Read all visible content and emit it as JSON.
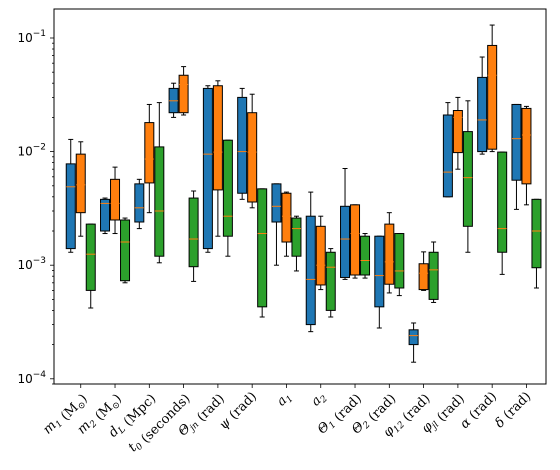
{
  "chart_data": {
    "type": "box",
    "yscale": "log",
    "ylim": [
      9e-05,
      0.18
    ],
    "y_ticks": [
      {
        "value": 0.0001,
        "base": "10",
        "exp": "−4"
      },
      {
        "value": 0.001,
        "base": "10",
        "exp": "−3"
      },
      {
        "value": 0.01,
        "base": "10",
        "exp": "−2"
      },
      {
        "value": 0.1,
        "base": "10",
        "exp": "−1"
      }
    ],
    "colors": [
      "#1f77b4",
      "#ff7f0e",
      "#2ca02c"
    ],
    "median_color": "#ff7f0e",
    "categories": [
      {
        "text": "m",
        "sub": "1",
        "tail": " (M",
        "sun_sub": "⊙",
        "close": ")"
      },
      {
        "text": "m",
        "sub": "2",
        "tail": " (M",
        "sun_sub": "⊙",
        "close": ")"
      },
      {
        "text": "d",
        "sub": "L",
        "tail": " (Mpc)"
      },
      {
        "text": "t",
        "sub": "0",
        "tail": " (seconds)"
      },
      {
        "text": "Θ",
        "sub": "jn",
        "tail": " (rad)"
      },
      {
        "text": "ψ",
        "tail": " (rad)"
      },
      {
        "text": "a",
        "sub": "1"
      },
      {
        "text": "a",
        "sub": "2"
      },
      {
        "text": "Θ",
        "sub": "1",
        "tail": " (rad)"
      },
      {
        "text": "Θ",
        "sub": "2",
        "tail": " (rad)"
      },
      {
        "text": "φ",
        "sub": "12",
        "tail": " (rad)"
      },
      {
        "text": "φ",
        "sub": "jl",
        "tail": " (rad)"
      },
      {
        "text": "α",
        "tail": " (rad)"
      },
      {
        "text": "δ",
        "tail": " (rad)"
      }
    ],
    "series": [
      {
        "color": "#1f77b4",
        "boxes": [
          [
            0.0013,
            0.0014,
            0.0049,
            0.0078,
            0.0128
          ],
          [
            0.0019,
            0.002,
            0.0035,
            0.0038,
            0.0039
          ],
          [
            0.0021,
            0.0024,
            0.0032,
            0.0052,
            0.0057
          ],
          [
            0.02,
            0.022,
            0.028,
            0.036,
            0.04
          ],
          [
            0.0013,
            0.0014,
            0.0095,
            0.036,
            0.038
          ],
          [
            0.0038,
            0.0043,
            0.01,
            0.03,
            0.036
          ],
          [
            0.001,
            0.0024,
            0.0033,
            0.0052,
            0.0052
          ],
          [
            0.00026,
            0.0003,
            0.00075,
            0.0027,
            0.0044
          ],
          [
            0.00075,
            0.00078,
            0.0017,
            0.0033,
            0.0071
          ],
          [
            0.00028,
            0.00043,
            0.00081,
            0.0018,
            0.0018
          ],
          [
            0.00014,
            0.0002,
            0.00024,
            0.00027,
            0.00031
          ],
          [
            0.004,
            0.004,
            0.0066,
            0.021,
            0.027
          ],
          [
            0.0095,
            0.01,
            0.019,
            0.045,
            0.068
          ],
          [
            0.0031,
            0.0056,
            0.013,
            0.026,
            0.026
          ]
        ]
      },
      {
        "color": "#ff7f0e",
        "boxes": [
          [
            0.0018,
            0.0029,
            0.0051,
            0.0095,
            0.0122
          ],
          [
            0.0019,
            0.0025,
            0.0035,
            0.0057,
            0.0073
          ],
          [
            0.0029,
            0.0053,
            0.0086,
            0.018,
            0.026
          ],
          [
            0.021,
            0.022,
            0.039,
            0.047,
            0.056
          ],
          [
            0.0018,
            0.0046,
            0.0099,
            0.038,
            0.042
          ],
          [
            0.0032,
            0.0036,
            0.0099,
            0.022,
            0.032
          ],
          [
            0.0012,
            0.0016,
            0.0027,
            0.0043,
            0.0044
          ],
          [
            0.00061,
            0.00067,
            0.001,
            0.0022,
            0.0027
          ],
          [
            0.00077,
            0.00082,
            0.0019,
            0.0034,
            0.0034
          ],
          [
            0.00057,
            0.00068,
            0.00107,
            0.0023,
            0.0029
          ],
          [
            0.0006,
            0.00061,
            0.00085,
            0.00103,
            0.00131
          ],
          [
            0.007,
            0.0098,
            0.02,
            0.023,
            0.03
          ],
          [
            0.01,
            0.0105,
            0.047,
            0.086,
            0.13
          ],
          [
            0.0034,
            0.0052,
            0.014,
            0.024,
            0.025
          ]
        ]
      },
      {
        "color": "#2ca02c",
        "boxes": [
          [
            0.00042,
            0.0006,
            0.00125,
            0.0023,
            0.0023
          ],
          [
            0.0007,
            0.00073,
            0.0016,
            0.0025,
            0.0026
          ],
          [
            0.00105,
            0.0012,
            0.003,
            0.011,
            0.027
          ],
          [
            0.00072,
            0.00097,
            0.0017,
            0.0039,
            0.0045
          ],
          [
            0.0012,
            0.0018,
            0.0027,
            0.0126,
            0.0126
          ],
          [
            0.00035,
            0.00043,
            0.0019,
            0.0047,
            0.0047
          ],
          [
            0.00089,
            0.0012,
            0.0021,
            0.0026,
            0.0027
          ],
          [
            0.00035,
            0.0004,
            0.00096,
            0.0013,
            0.0014
          ],
          [
            0.00077,
            0.00082,
            0.0011,
            0.0018,
            0.0019
          ],
          [
            0.00054,
            0.00063,
            0.00089,
            0.0019,
            0.0019
          ],
          [
            0.00047,
            0.0005,
            0.00091,
            0.0013,
            0.0016
          ],
          [
            0.0013,
            0.0022,
            0.0059,
            0.015,
            0.028
          ],
          [
            0.00083,
            0.0013,
            0.0021,
            0.0099,
            0.0099
          ],
          [
            0.00063,
            0.00095,
            0.002,
            0.0038,
            0.0038
          ]
        ]
      }
    ]
  }
}
